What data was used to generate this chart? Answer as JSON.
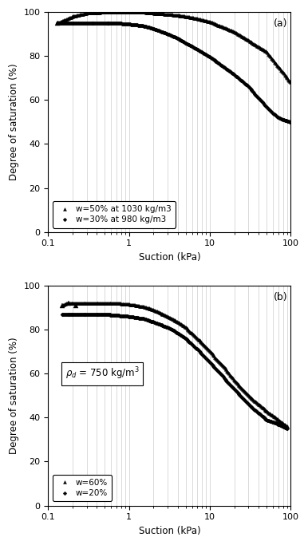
{
  "panel_a": {
    "title_label": "(a)",
    "xlabel": "Suction (kPa)",
    "ylabel": "Degree of saturation (%)",
    "xlim": [
      0.1,
      100
    ],
    "ylim": [
      0,
      100
    ],
    "yticks": [
      0,
      20,
      40,
      60,
      80,
      100
    ],
    "legend_triangle": "w=50% at 1030 kg/m3",
    "legend_diamond": "w=30% at 980 kg/m3",
    "series_triangle_sparse": {
      "x": [
        0.13,
        0.35,
        0.55,
        0.7
      ],
      "y": [
        95,
        95,
        95,
        95
      ]
    },
    "series_diamond_sparse": {
      "x": [
        0.13,
        0.35,
        0.55,
        0.7
      ],
      "y": [
        95,
        95,
        95,
        95
      ]
    }
  },
  "panel_b": {
    "title_label": "(b)",
    "xlabel": "Suction (kPa)",
    "ylabel": "Degree of saturation (%)",
    "xlim": [
      0.1,
      100
    ],
    "ylim": [
      0,
      100
    ],
    "yticks": [
      0,
      20,
      40,
      60,
      80,
      100
    ],
    "annotation_line1": "rho_d = 750 kg/m3",
    "legend_diamond": "w=20%",
    "legend_triangle": "w=60%"
  },
  "marker_size": 3,
  "marker_color": "black",
  "background_color": "#ffffff",
  "grid_color": "#cccccc"
}
